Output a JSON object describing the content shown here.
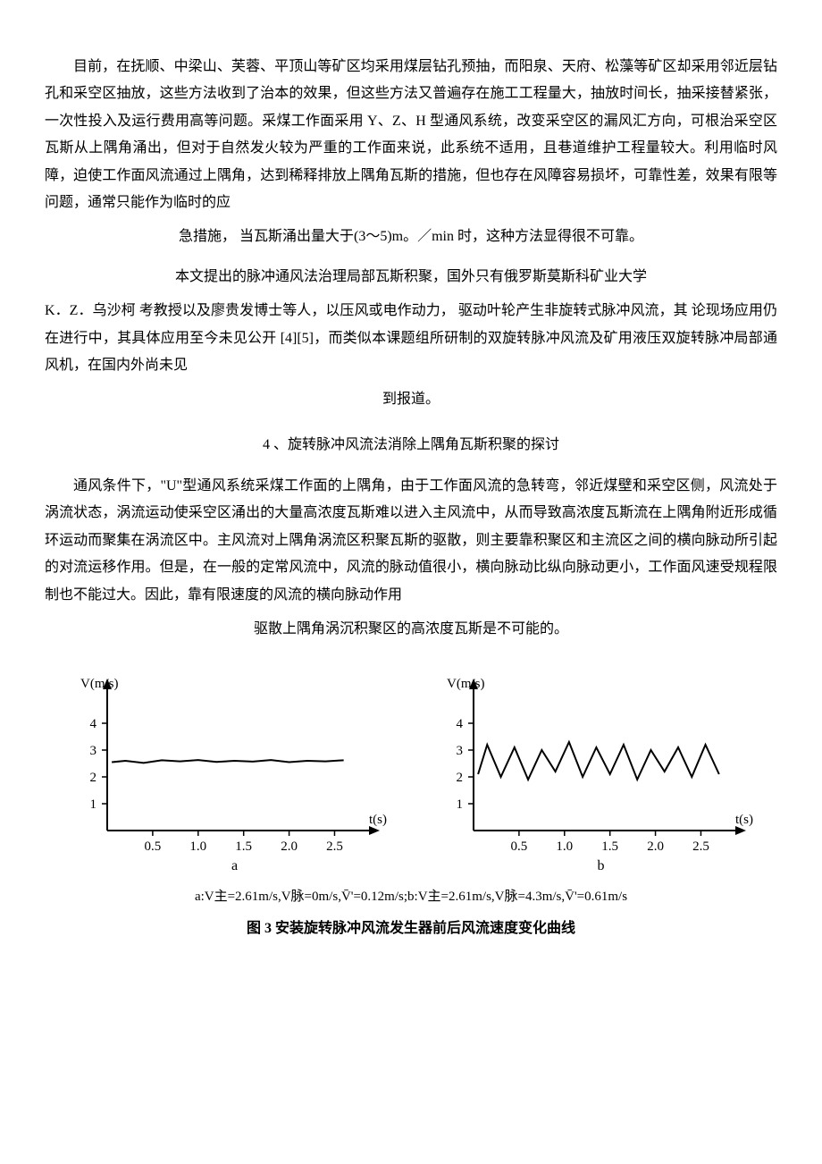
{
  "paragraphs": {
    "p1": "目前，在抚顺、中梁山、芙蓉、平顶山等矿区均采用煤层钻孔预抽，而阳泉、天府、松藻等矿区却采用邻近层钻孔和采空区抽放，这些方法收到了治本的效果，但这些方法又普遍存在施工工程量大，抽放时间长，抽采接替紧张，一次性投入及运行费用高等问题。采煤工作面采用 Y、Z、H 型通风系统，改变采空区的漏风汇方向，可根治采空区瓦斯从上隅角涌出，但对于自然发火较为严重的工作面来说，此系统不适用，且巷道维护工程量较大。利用临时风障，迫使工作面风流通过上隅角，达到稀释排放上隅角瓦斯的措施，但也存在风障容易损坏，可靠性差，效果有限等问题，通常只能作为临时的应",
    "p1_end": "急措施， 当瓦斯涌出量大于(3～5)m。／min 时，这种方法显得很不可靠。",
    "p2_start": "本文提出的脉冲通风法治理局部瓦斯积聚，国外只有俄罗斯莫斯科矿业大学",
    "p2": "K．Z．乌沙柯 考教授以及廖贵发博士等人，以压风或电作动力， 驱动叶轮产生非旋转式脉冲风流，其 论现场应用仍在进行中，其具体应用至今未见公开 [4][5]，而类似本课题组所研制的双旋转脉冲风流及矿用液压双旋转脉冲局部通风机，在国内外尚未见",
    "p2_end": "到报道。",
    "section4_title": "4 、旋转脉冲风流法消除上隅角瓦斯积聚的探讨",
    "p3": "通风条件下，\"U\"型通风系统采煤工作面的上隅角，由于工作面风流的急转弯，邻近煤壁和采空区侧，风流处于涡流状态，涡流运动使采空区涌出的大量高浓度瓦斯难以进入主风流中，从而导致高浓度瓦斯流在上隅角附近形成循环运动而聚集在涡流区中。主风流对上隅角涡流区积聚瓦斯的驱散，则主要靠积聚区和主流区之间的横向脉动所引起的对流运移作用。但是，在一般的定常风流中，风流的脉动值很小，横向脉动比纵向脉动更小，工作面风速受规程限制也不能过大。因此，靠有限速度的风流的横向脉动作用",
    "p3_end": "驱散上隅角涡沉积聚区的高浓度瓦斯是不可能的。"
  },
  "figure": {
    "y_axis_label": "V(m/s)",
    "x_axis_label": "t(s)",
    "chart_a": {
      "label": "a",
      "y_ticks": [
        1,
        2,
        3,
        4
      ],
      "x_ticks": [
        "0.5",
        "1.0",
        "1.5",
        "2.0",
        "2.5"
      ],
      "ylim": [
        0,
        5
      ],
      "xlim": [
        0,
        2.8
      ],
      "line_data": [
        {
          "x": 0.05,
          "y": 2.55
        },
        {
          "x": 0.2,
          "y": 2.6
        },
        {
          "x": 0.4,
          "y": 2.52
        },
        {
          "x": 0.6,
          "y": 2.62
        },
        {
          "x": 0.8,
          "y": 2.58
        },
        {
          "x": 1.0,
          "y": 2.63
        },
        {
          "x": 1.2,
          "y": 2.56
        },
        {
          "x": 1.4,
          "y": 2.6
        },
        {
          "x": 1.6,
          "y": 2.57
        },
        {
          "x": 1.8,
          "y": 2.63
        },
        {
          "x": 2.0,
          "y": 2.55
        },
        {
          "x": 2.2,
          "y": 2.6
        },
        {
          "x": 2.4,
          "y": 2.58
        },
        {
          "x": 2.6,
          "y": 2.62
        }
      ]
    },
    "chart_b": {
      "label": "b",
      "y_ticks": [
        1,
        2,
        3,
        4
      ],
      "x_ticks": [
        "0.5",
        "1.0",
        "1.5",
        "2.0",
        "2.5"
      ],
      "ylim": [
        0,
        5
      ],
      "xlim": [
        0,
        2.8
      ],
      "line_data": [
        {
          "x": 0.05,
          "y": 2.1
        },
        {
          "x": 0.15,
          "y": 3.2
        },
        {
          "x": 0.3,
          "y": 2.0
        },
        {
          "x": 0.45,
          "y": 3.1
        },
        {
          "x": 0.6,
          "y": 1.9
        },
        {
          "x": 0.75,
          "y": 3.0
        },
        {
          "x": 0.9,
          "y": 2.2
        },
        {
          "x": 1.05,
          "y": 3.3
        },
        {
          "x": 1.2,
          "y": 2.0
        },
        {
          "x": 1.35,
          "y": 3.1
        },
        {
          "x": 1.5,
          "y": 2.1
        },
        {
          "x": 1.65,
          "y": 3.2
        },
        {
          "x": 1.8,
          "y": 1.9
        },
        {
          "x": 1.95,
          "y": 3.0
        },
        {
          "x": 2.1,
          "y": 2.2
        },
        {
          "x": 2.25,
          "y": 3.1
        },
        {
          "x": 2.4,
          "y": 2.0
        },
        {
          "x": 2.55,
          "y": 3.2
        },
        {
          "x": 2.7,
          "y": 2.1
        }
      ]
    },
    "params_text": "a:V主=2.61m/s,V脉=0m/s,V̄'=0.12m/s;b:V主=2.61m/s,V脉=4.3m/s,V̄'=0.61m/s",
    "caption": "图 3  安装旋转脉冲风流发生器前后风流速度变化曲线",
    "line_color": "#000000",
    "axis_color": "#000000",
    "background_color": "#ffffff"
  }
}
